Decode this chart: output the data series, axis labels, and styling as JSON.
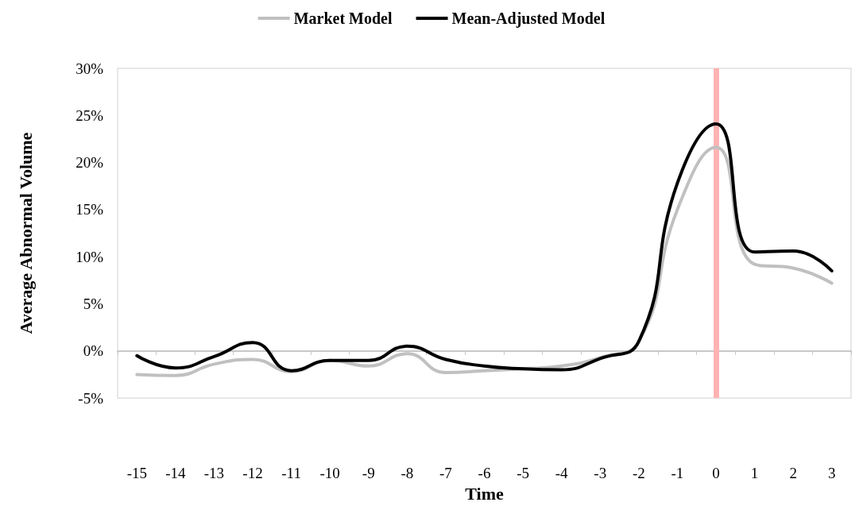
{
  "chart_data": {
    "type": "line",
    "xlabel": "Time",
    "ylabel": "Average Abnormal Volume",
    "categories": [
      "-15",
      "-14",
      "-13",
      "-12",
      "-11",
      "-10",
      "-9",
      "-8",
      "-7",
      "-6",
      "-5",
      "-4",
      "-3",
      "-2",
      "-1",
      "0",
      "1",
      "2",
      "3"
    ],
    "series": [
      {
        "name": "Market Model",
        "color": "#c0c0c0",
        "values": [
          -2.5,
          -2.6,
          -1.4,
          -0.9,
          -2.2,
          -1.0,
          -1.6,
          -0.3,
          -2.3,
          -2.1,
          -1.9,
          -1.6,
          -0.7,
          1.0,
          15.0,
          21.6,
          9.2,
          8.8,
          7.2
        ]
      },
      {
        "name": "Mean-Adjusted Model",
        "color": "#000000",
        "values": [
          -0.5,
          -1.8,
          -0.6,
          0.9,
          -2.1,
          -1.0,
          -1.0,
          0.5,
          -0.9,
          -1.6,
          -1.9,
          -2.0,
          -0.8,
          1.0,
          17.8,
          24.1,
          10.5,
          10.6,
          8.5
        ]
      }
    ],
    "ylim": [
      -5,
      30
    ],
    "yticks": [
      {
        "value": -5,
        "label": "-5%"
      },
      {
        "value": 0,
        "label": "0%"
      },
      {
        "value": 5,
        "label": "5%"
      },
      {
        "value": 10,
        "label": "10%"
      },
      {
        "value": 15,
        "label": "15%"
      },
      {
        "value": 20,
        "label": "20%"
      },
      {
        "value": 25,
        "label": "25%"
      },
      {
        "value": 30,
        "label": "30%"
      }
    ],
    "ref_lines": [
      {
        "axis": "x",
        "value": "0",
        "color": "#ffb3b3"
      }
    ],
    "legend": "top",
    "grid": false,
    "marker": "none"
  }
}
